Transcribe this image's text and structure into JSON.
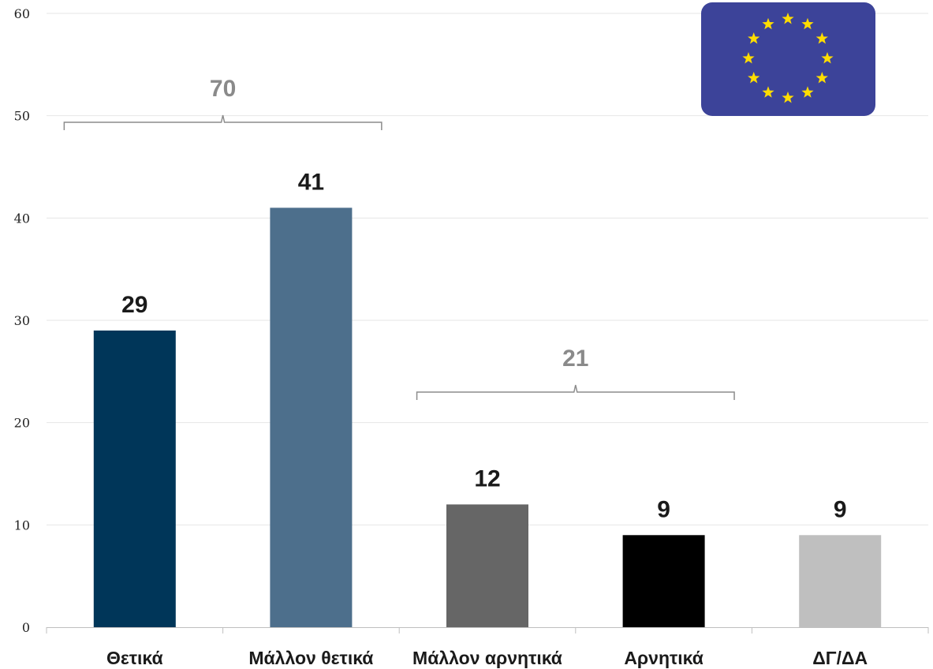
{
  "chart_data": {
    "type": "bar",
    "categories": [
      "Θετικά",
      "Μάλλον θετικά",
      "Μάλλον αρνητικά",
      "Αρνητικά",
      "ΔΓ/ΔΑ"
    ],
    "values": [
      29,
      41,
      12,
      9,
      9
    ],
    "data_labels": [
      "29",
      "41",
      "12",
      "9",
      "9"
    ],
    "colors": [
      "#003659",
      "#4d6f8c",
      "#666666",
      "#000000",
      "#bfbfbf"
    ],
    "ylim": [
      0,
      60
    ],
    "yticks": [
      0,
      10,
      20,
      30,
      40,
      50,
      60
    ],
    "grid": true,
    "groups": [
      {
        "label": "70",
        "from": 0,
        "to": 1
      },
      {
        "label": "21",
        "from": 2,
        "to": 3
      }
    ]
  },
  "flag": {
    "icon": "eu-flag-icon",
    "background": "#3c4399",
    "star_color": "#ffdd00"
  }
}
